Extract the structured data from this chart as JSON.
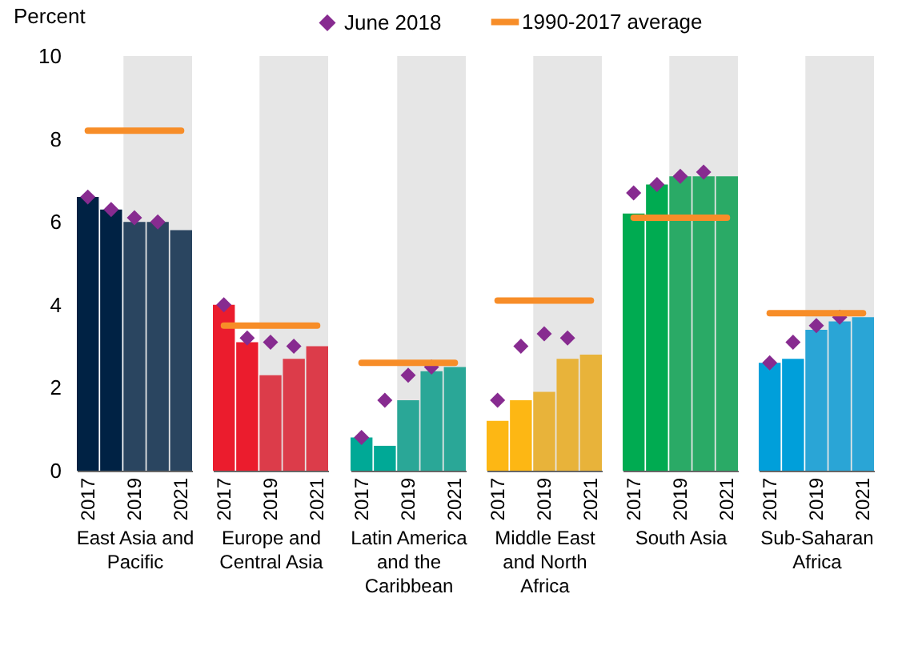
{
  "chart_data": [
    {
      "type": "bar",
      "xlabel": "East Asia and Pacific",
      "ylabel": "Percent",
      "categories": [
        "2017",
        null,
        "2019",
        null,
        "2021"
      ],
      "ylim": [
        0,
        10
      ],
      "yticks": [
        0,
        2,
        4,
        6,
        8,
        10
      ],
      "legend": "top",
      "series": [
        {
          "type": "bar",
          "colors": [
            "#002244",
            "#002244",
            "#2a4560",
            "#2a4560",
            "#2a4560"
          ],
          "values": [
            6.6,
            6.3,
            6.0,
            6.0,
            5.8
          ]
        },
        {
          "type": "scatter",
          "name": "June 2018",
          "color": "#872b90",
          "marker": "diamond",
          "values": [
            6.6,
            6.3,
            6.1,
            6.0,
            null
          ]
        }
      ],
      "ref_lines": [
        {
          "axis": "y",
          "value": 8.2,
          "label": "1990-2017 average",
          "color": "#f78d28"
        }
      ],
      "bands": [
        {
          "axis": "x",
          "from": "2019",
          "to": "2021",
          "color": "#e6e6e6"
        }
      ]
    },
    {
      "type": "bar",
      "xlabel": "Europe and Central Asia",
      "categories": [
        "2017",
        null,
        "2019",
        null,
        "2021"
      ],
      "ylim": [
        0,
        10
      ],
      "tick_labels": "x",
      "series": [
        {
          "type": "bar",
          "colors": [
            "#eb1c2d",
            "#eb1c2d",
            "#dc3c4a",
            "#dc3c4a",
            "#dc3c4a"
          ],
          "values": [
            4.0,
            3.1,
            2.3,
            2.7,
            3.0
          ]
        },
        {
          "type": "scatter",
          "color": "#872b90",
          "marker": "diamond",
          "values": [
            4.0,
            3.2,
            3.1,
            3.0,
            null
          ]
        }
      ],
      "ref_lines": [
        {
          "axis": "y",
          "value": 3.5,
          "color": "#f78d28"
        }
      ],
      "bands": [
        {
          "axis": "x",
          "from": "2019",
          "to": "2021",
          "color": "#e6e6e6"
        }
      ]
    },
    {
      "type": "bar",
      "xlabel": "Latin America and the Caribbean",
      "categories": [
        "2017",
        null,
        "2019",
        null,
        "2021"
      ],
      "ylim": [
        0,
        10
      ],
      "tick_labels": "x",
      "series": [
        {
          "type": "bar",
          "colors": [
            "#00a996",
            "#00a996",
            "#2aa797",
            "#2aa797",
            "#2aa797"
          ],
          "values": [
            0.8,
            0.6,
            1.7,
            2.4,
            2.5
          ]
        },
        {
          "type": "scatter",
          "color": "#872b90",
          "marker": "diamond",
          "values": [
            0.8,
            1.7,
            2.3,
            2.5,
            null
          ]
        }
      ],
      "ref_lines": [
        {
          "axis": "y",
          "value": 2.6,
          "color": "#f78d28"
        }
      ],
      "bands": [
        {
          "axis": "x",
          "from": "2019",
          "to": "2021",
          "color": "#e6e6e6"
        }
      ]
    },
    {
      "type": "bar",
      "xlabel": "Middle East and North Africa",
      "categories": [
        "2017",
        null,
        "2019",
        null,
        "2021"
      ],
      "ylim": [
        0,
        10
      ],
      "tick_labels": "x",
      "series": [
        {
          "type": "bar",
          "colors": [
            "#fdb714",
            "#fdb714",
            "#e8b33a",
            "#e8b33a",
            "#e8b33a"
          ],
          "values": [
            1.2,
            1.7,
            1.9,
            2.7,
            2.8
          ]
        },
        {
          "type": "scatter",
          "color": "#872b90",
          "marker": "diamond",
          "values": [
            1.7,
            3.0,
            3.3,
            3.2,
            null
          ]
        }
      ],
      "ref_lines": [
        {
          "axis": "y",
          "value": 4.1,
          "color": "#f78d28"
        }
      ],
      "bands": [
        {
          "axis": "x",
          "from": "2019",
          "to": "2021",
          "color": "#e6e6e6"
        }
      ]
    },
    {
      "type": "bar",
      "xlabel": "South Asia",
      "categories": [
        "2017",
        null,
        "2019",
        null,
        "2021"
      ],
      "ylim": [
        0,
        10
      ],
      "tick_labels": "x",
      "series": [
        {
          "type": "bar",
          "colors": [
            "#00ab51",
            "#00ab51",
            "#2aaa66",
            "#2aaa66",
            "#2aaa66"
          ],
          "values": [
            6.2,
            6.9,
            7.1,
            7.1,
            7.1
          ]
        },
        {
          "type": "scatter",
          "color": "#872b90",
          "marker": "diamond",
          "values": [
            6.7,
            6.9,
            7.1,
            7.2,
            null
          ]
        }
      ],
      "ref_lines": [
        {
          "axis": "y",
          "value": 6.1,
          "color": "#f78d28"
        }
      ],
      "bands": [
        {
          "axis": "x",
          "from": "2019",
          "to": "2021",
          "color": "#e6e6e6"
        }
      ]
    },
    {
      "type": "bar",
      "xlabel": "Sub-Saharan Africa",
      "categories": [
        "2017",
        null,
        "2019",
        null,
        "2021"
      ],
      "ylim": [
        0,
        10
      ],
      "tick_labels": "x",
      "series": [
        {
          "type": "bar",
          "colors": [
            "#009fda",
            "#009fda",
            "#2aa5d6",
            "#2aa5d6",
            "#2aa5d6"
          ],
          "values": [
            2.6,
            2.7,
            3.4,
            3.6,
            3.7
          ]
        },
        {
          "type": "scatter",
          "color": "#872b90",
          "marker": "diamond",
          "values": [
            2.6,
            3.1,
            3.5,
            3.7,
            null
          ]
        }
      ],
      "ref_lines": [
        {
          "axis": "y",
          "value": 3.8,
          "color": "#f78d28"
        }
      ],
      "bands": [
        {
          "axis": "x",
          "from": "2019",
          "to": "2021",
          "color": "#e6e6e6"
        }
      ]
    }
  ]
}
